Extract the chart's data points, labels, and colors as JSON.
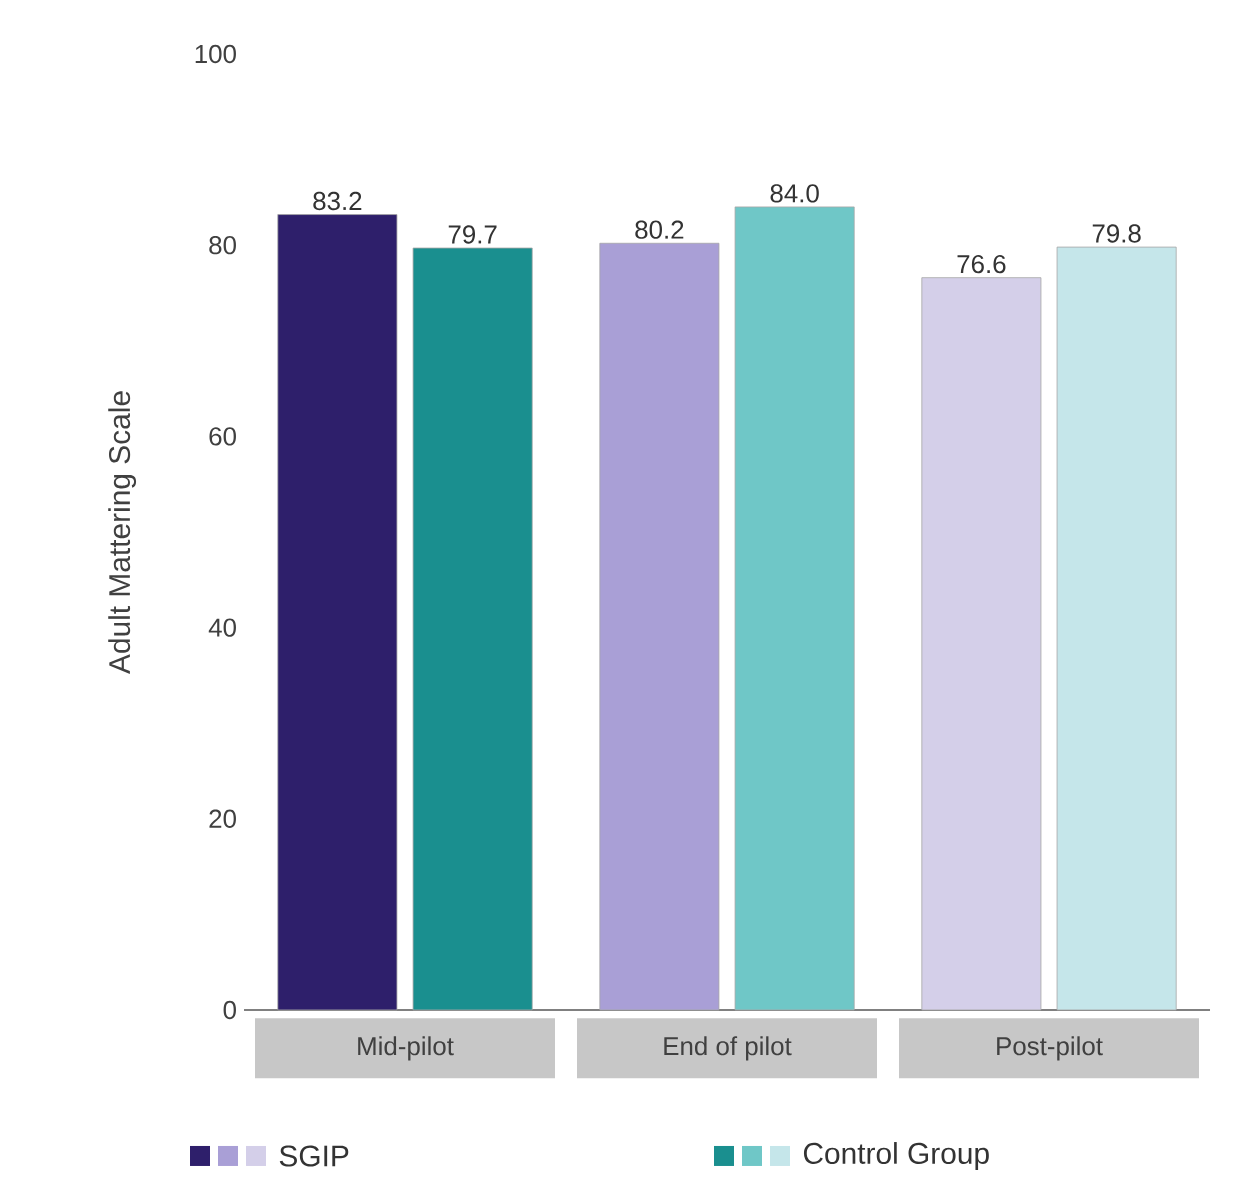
{
  "chart_data": {
    "type": "bar",
    "ylabel": "Adult Mattering Scale",
    "categories": [
      "Mid-pilot",
      "End of pilot",
      "Post-pilot"
    ],
    "series": [
      {
        "name": "SGIP",
        "colors": [
          "#2e1f6b",
          "#a99fd6",
          "#d4cfe9"
        ],
        "values": [
          83.2,
          80.2,
          76.6
        ],
        "value_labels": [
          "83.2",
          "80.2",
          "76.6"
        ]
      },
      {
        "name": "Control Group",
        "colors": [
          "#1a8f8f",
          "#6fc7c7",
          "#c5e6ea"
        ],
        "values": [
          79.7,
          84.0,
          79.8
        ],
        "value_labels": [
          "79.7",
          "84.0",
          "79.8"
        ]
      }
    ],
    "ylim": [
      0,
      100
    ],
    "yticks": [
      0,
      20,
      40,
      60,
      80,
      100
    ],
    "legend": "bottom"
  }
}
